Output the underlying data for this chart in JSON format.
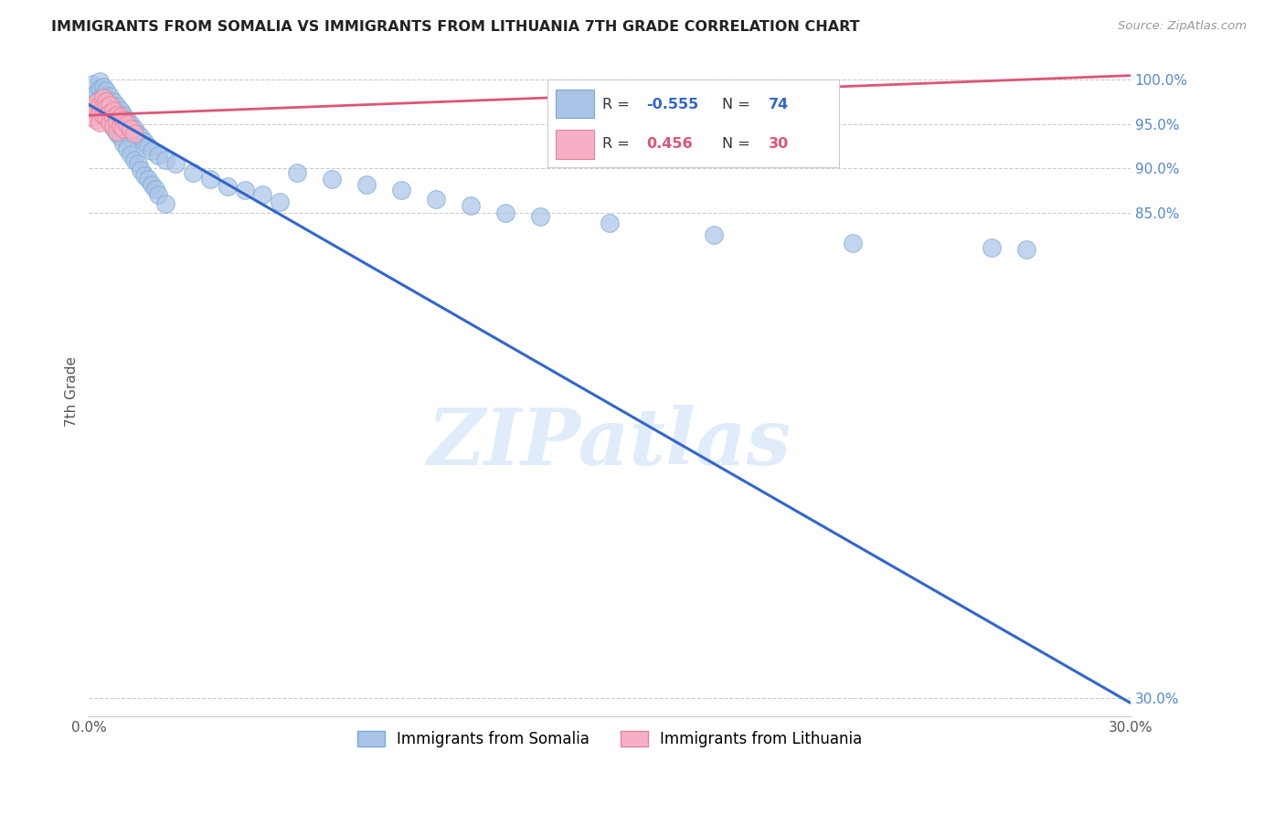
{
  "title": "IMMIGRANTS FROM SOMALIA VS IMMIGRANTS FROM LITHUANIA 7TH GRADE CORRELATION CHART",
  "source": "Source: ZipAtlas.com",
  "ylabel": "7th Grade",
  "xlim": [
    0.0,
    0.3
  ],
  "ylim": [
    0.28,
    1.015
  ],
  "xticks": [
    0.0,
    0.05,
    0.1,
    0.15,
    0.2,
    0.25,
    0.3
  ],
  "xticklabels": [
    "0.0%",
    "",
    "",
    "",
    "",
    "",
    "30.0%"
  ],
  "right_yticks": [
    1.0,
    0.95,
    0.9,
    0.85,
    0.3
  ],
  "right_yticklabels": [
    "100.0%",
    "95.0%",
    "90.0%",
    "85.0%",
    "30.0%"
  ],
  "somalia_color": "#aac4e8",
  "somalia_edge_color": "#7aaad0",
  "lithuania_color": "#f5b0c5",
  "lithuania_edge_color": "#e8809a",
  "somalia_line_color": "#3366cc",
  "lithuania_line_color": "#dd5577",
  "R_somalia": -0.555,
  "N_somalia": 74,
  "R_lithuania": 0.456,
  "N_lithuania": 30,
  "legend_somalia": "Immigrants from Somalia",
  "legend_lithuania": "Immigrants from Lithuania",
  "watermark": "ZIPatlas",
  "background_color": "#ffffff",
  "grid_color": "#cccccc",
  "somalia_line_x0": 0.0,
  "somalia_line_y0": 0.972,
  "somalia_line_x1": 0.3,
  "somalia_line_y1": 0.295,
  "lithuania_line_x0": 0.0,
  "lithuania_line_y0": 0.96,
  "lithuania_line_x1": 0.3,
  "lithuania_line_y1": 1.005,
  "somalia_x": [
    0.001,
    0.002,
    0.002,
    0.003,
    0.003,
    0.003,
    0.004,
    0.004,
    0.004,
    0.005,
    0.005,
    0.005,
    0.006,
    0.006,
    0.006,
    0.007,
    0.007,
    0.007,
    0.008,
    0.008,
    0.009,
    0.009,
    0.01,
    0.01,
    0.011,
    0.011,
    0.012,
    0.012,
    0.013,
    0.014,
    0.015,
    0.016,
    0.017,
    0.018,
    0.02,
    0.022,
    0.025,
    0.03,
    0.035,
    0.04,
    0.045,
    0.05,
    0.055,
    0.06,
    0.07,
    0.08,
    0.09,
    0.1,
    0.11,
    0.12,
    0.004,
    0.005,
    0.006,
    0.007,
    0.008,
    0.009,
    0.01,
    0.011,
    0.012,
    0.013,
    0.014,
    0.015,
    0.016,
    0.017,
    0.018,
    0.019,
    0.02,
    0.022,
    0.13,
    0.15,
    0.18,
    0.22,
    0.26,
    0.27
  ],
  "somalia_y": [
    0.995,
    0.985,
    0.975,
    0.998,
    0.99,
    0.978,
    0.992,
    0.982,
    0.97,
    0.988,
    0.978,
    0.968,
    0.982,
    0.972,
    0.962,
    0.976,
    0.968,
    0.958,
    0.97,
    0.96,
    0.965,
    0.955,
    0.96,
    0.95,
    0.955,
    0.945,
    0.95,
    0.94,
    0.945,
    0.938,
    0.935,
    0.93,
    0.925,
    0.92,
    0.915,
    0.91,
    0.905,
    0.895,
    0.888,
    0.88,
    0.875,
    0.87,
    0.862,
    0.895,
    0.888,
    0.882,
    0.875,
    0.865,
    0.858,
    0.85,
    0.968,
    0.96,
    0.952,
    0.946,
    0.94,
    0.935,
    0.928,
    0.922,
    0.916,
    0.91,
    0.905,
    0.898,
    0.892,
    0.888,
    0.882,
    0.876,
    0.87,
    0.86,
    0.845,
    0.838,
    0.825,
    0.815,
    0.81,
    0.808
  ],
  "lithuania_x": [
    0.001,
    0.001,
    0.002,
    0.002,
    0.002,
    0.003,
    0.003,
    0.003,
    0.004,
    0.004,
    0.004,
    0.005,
    0.005,
    0.005,
    0.006,
    0.006,
    0.006,
    0.007,
    0.007,
    0.007,
    0.008,
    0.008,
    0.008,
    0.009,
    0.009,
    0.01,
    0.01,
    0.011,
    0.012,
    0.013
  ],
  "lithuania_y": [
    0.968,
    0.958,
    0.975,
    0.965,
    0.955,
    0.972,
    0.962,
    0.952,
    0.98,
    0.97,
    0.96,
    0.976,
    0.968,
    0.958,
    0.972,
    0.962,
    0.952,
    0.965,
    0.958,
    0.948,
    0.96,
    0.952,
    0.942,
    0.958,
    0.948,
    0.955,
    0.945,
    0.95,
    0.945,
    0.94
  ]
}
